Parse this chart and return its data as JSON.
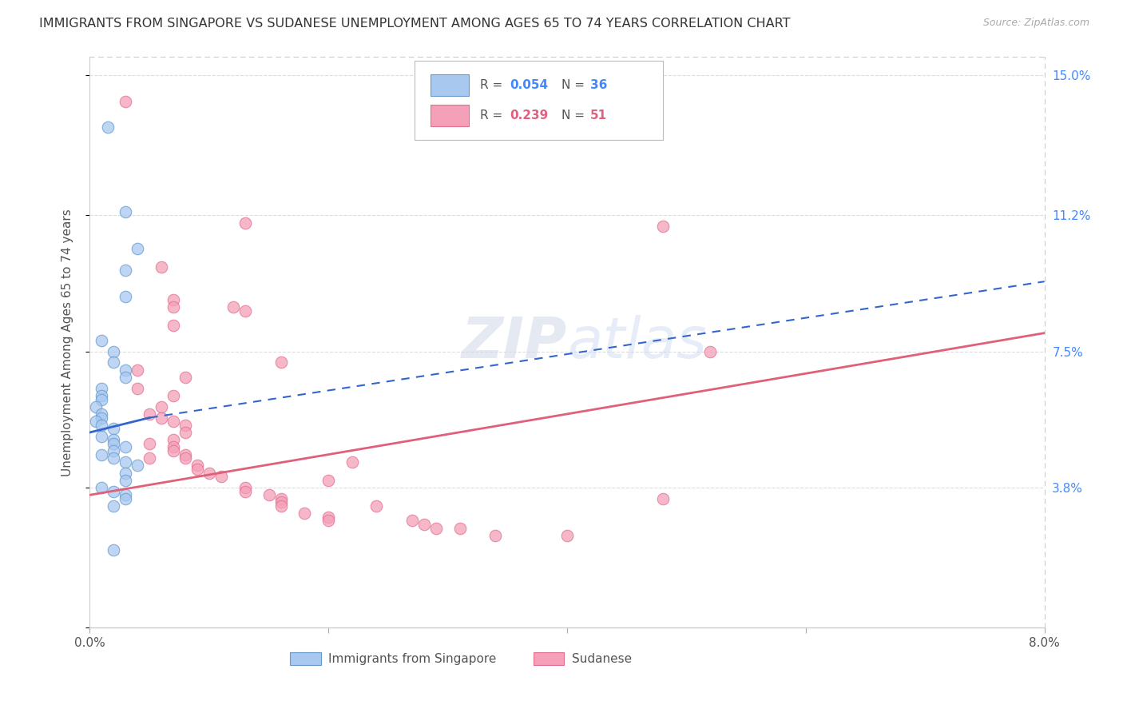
{
  "title": "IMMIGRANTS FROM SINGAPORE VS SUDANESE UNEMPLOYMENT AMONG AGES 65 TO 74 YEARS CORRELATION CHART",
  "source": "Source: ZipAtlas.com",
  "ylabel": "Unemployment Among Ages 65 to 74 years",
  "xlim": [
    0.0,
    0.08
  ],
  "ylim": [
    0.0,
    0.155
  ],
  "watermark": "ZIPatlas",
  "singapore_color": "#a8c8f0",
  "singapore_edge": "#6699cc",
  "sudanese_color": "#f4a0b8",
  "sudanese_edge": "#e07090",
  "singapore_line_color": "#3366cc",
  "sudanese_line_color": "#e0607a",
  "ytick_positions": [
    0.0,
    0.038,
    0.075,
    0.112,
    0.15
  ],
  "ytick_labels": [
    "",
    "3.8%",
    "7.5%",
    "11.2%",
    "15.0%"
  ],
  "xtick_positions": [
    0.0,
    0.02,
    0.04,
    0.06,
    0.08
  ],
  "xtick_labels": [
    "0.0%",
    "",
    "",
    "",
    "8.0%"
  ],
  "singapore_points": [
    [
      0.0015,
      0.136
    ],
    [
      0.003,
      0.113
    ],
    [
      0.004,
      0.103
    ],
    [
      0.003,
      0.097
    ],
    [
      0.003,
      0.09
    ],
    [
      0.001,
      0.078
    ],
    [
      0.002,
      0.075
    ],
    [
      0.002,
      0.072
    ],
    [
      0.003,
      0.07
    ],
    [
      0.003,
      0.068
    ],
    [
      0.001,
      0.065
    ],
    [
      0.001,
      0.063
    ],
    [
      0.001,
      0.062
    ],
    [
      0.0005,
      0.06
    ],
    [
      0.001,
      0.058
    ],
    [
      0.001,
      0.057
    ],
    [
      0.0005,
      0.056
    ],
    [
      0.001,
      0.055
    ],
    [
      0.002,
      0.054
    ],
    [
      0.001,
      0.052
    ],
    [
      0.002,
      0.051
    ],
    [
      0.002,
      0.05
    ],
    [
      0.003,
      0.049
    ],
    [
      0.002,
      0.048
    ],
    [
      0.001,
      0.047
    ],
    [
      0.002,
      0.046
    ],
    [
      0.003,
      0.045
    ],
    [
      0.004,
      0.044
    ],
    [
      0.003,
      0.042
    ],
    [
      0.003,
      0.04
    ],
    [
      0.002,
      0.037
    ],
    [
      0.003,
      0.036
    ],
    [
      0.003,
      0.035
    ],
    [
      0.001,
      0.038
    ],
    [
      0.002,
      0.033
    ],
    [
      0.002,
      0.021
    ]
  ],
  "sudanese_points": [
    [
      0.003,
      0.143
    ],
    [
      0.006,
      0.098
    ],
    [
      0.007,
      0.089
    ],
    [
      0.007,
      0.087
    ],
    [
      0.013,
      0.11
    ],
    [
      0.012,
      0.087
    ],
    [
      0.013,
      0.086
    ],
    [
      0.007,
      0.082
    ],
    [
      0.016,
      0.072
    ],
    [
      0.004,
      0.07
    ],
    [
      0.008,
      0.068
    ],
    [
      0.004,
      0.065
    ],
    [
      0.007,
      0.063
    ],
    [
      0.006,
      0.06
    ],
    [
      0.005,
      0.058
    ],
    [
      0.006,
      0.057
    ],
    [
      0.007,
      0.056
    ],
    [
      0.008,
      0.055
    ],
    [
      0.008,
      0.053
    ],
    [
      0.007,
      0.051
    ],
    [
      0.005,
      0.05
    ],
    [
      0.007,
      0.049
    ],
    [
      0.007,
      0.048
    ],
    [
      0.008,
      0.047
    ],
    [
      0.005,
      0.046
    ],
    [
      0.008,
      0.046
    ],
    [
      0.022,
      0.045
    ],
    [
      0.009,
      0.044
    ],
    [
      0.009,
      0.043
    ],
    [
      0.01,
      0.042
    ],
    [
      0.011,
      0.041
    ],
    [
      0.02,
      0.04
    ],
    [
      0.013,
      0.038
    ],
    [
      0.013,
      0.037
    ],
    [
      0.015,
      0.036
    ],
    [
      0.016,
      0.035
    ],
    [
      0.016,
      0.034
    ],
    [
      0.016,
      0.033
    ],
    [
      0.024,
      0.033
    ],
    [
      0.018,
      0.031
    ],
    [
      0.02,
      0.03
    ],
    [
      0.02,
      0.029
    ],
    [
      0.027,
      0.029
    ],
    [
      0.028,
      0.028
    ],
    [
      0.029,
      0.027
    ],
    [
      0.031,
      0.027
    ],
    [
      0.034,
      0.025
    ],
    [
      0.04,
      0.025
    ],
    [
      0.048,
      0.035
    ],
    [
      0.048,
      0.109
    ],
    [
      0.052,
      0.075
    ]
  ]
}
